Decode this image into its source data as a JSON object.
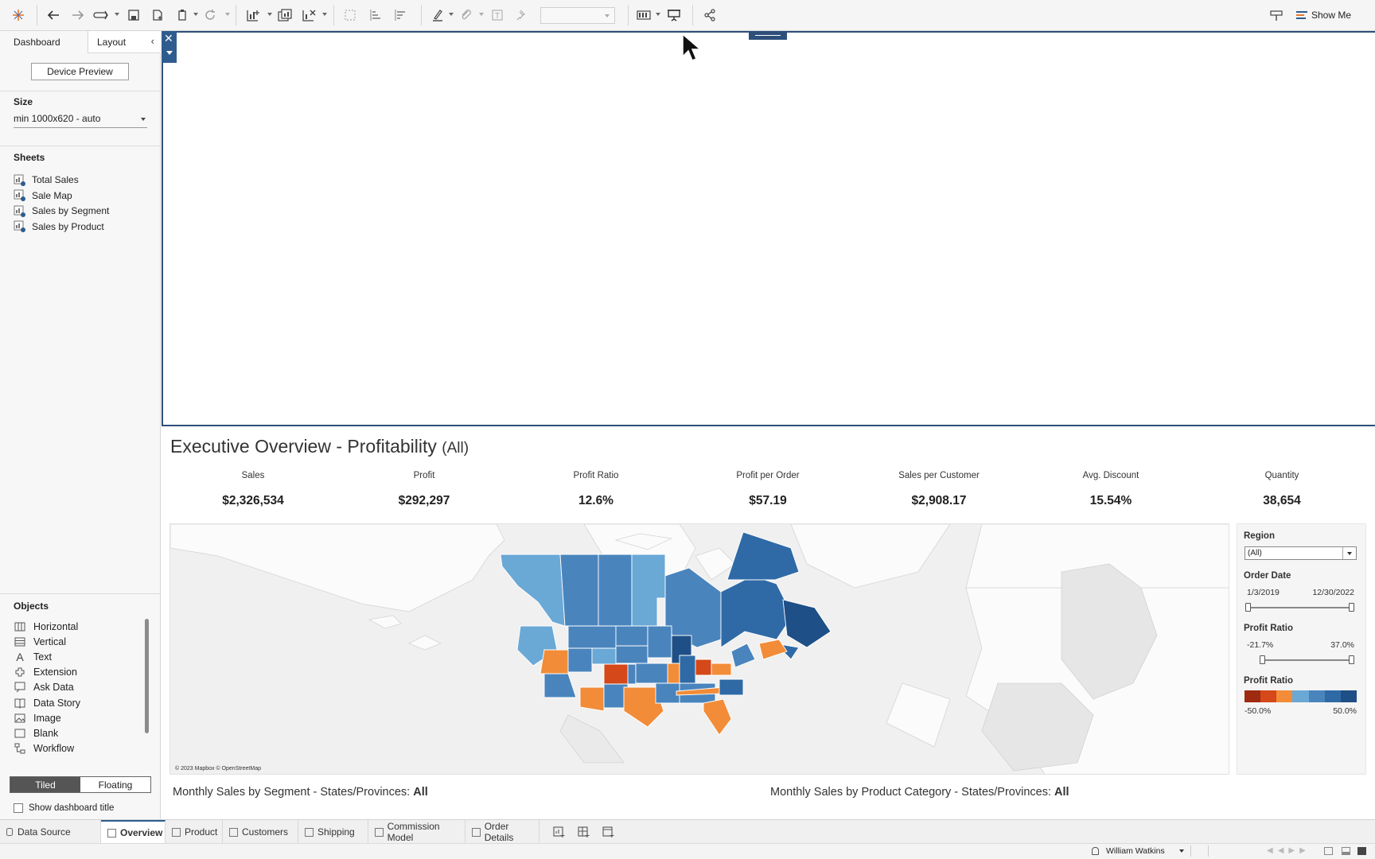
{
  "toolbar": {
    "show_me_label": "Show Me"
  },
  "left_panel": {
    "tabs": [
      "Dashboard",
      "Layout"
    ],
    "device_preview_label": "Device Preview",
    "size_title": "Size",
    "size_value": "min 1000x620 - auto",
    "sheets_title": "Sheets",
    "sheets": [
      "Total Sales",
      "Sale Map",
      "Sales by Segment",
      "Sales by Product"
    ],
    "objects_title": "Objects",
    "objects": [
      {
        "label": "Horizontal",
        "icon": "horizontal-icon"
      },
      {
        "label": "Vertical",
        "icon": "vertical-icon"
      },
      {
        "label": "Text",
        "icon": "text-icon"
      },
      {
        "label": "Extension",
        "icon": "extension-icon"
      },
      {
        "label": "Ask Data",
        "icon": "ask-data-icon"
      },
      {
        "label": "Data Story",
        "icon": "data-story-icon"
      },
      {
        "label": "Image",
        "icon": "image-icon"
      },
      {
        "label": "Blank",
        "icon": "blank-icon"
      },
      {
        "label": "Workflow",
        "icon": "workflow-icon"
      }
    ],
    "tiled_label": "Tiled",
    "floating_label": "Floating",
    "show_title_label": "Show dashboard title"
  },
  "dashboard": {
    "title": "Executive Overview - Profitability",
    "title_suffix": "(All)",
    "kpis": [
      {
        "label": "Sales",
        "value": "$2,326,534"
      },
      {
        "label": "Profit",
        "value": "$292,297"
      },
      {
        "label": "Profit Ratio",
        "value": "12.6%"
      },
      {
        "label": "Profit per Order",
        "value": "$57.19"
      },
      {
        "label": "Sales per Customer",
        "value": "$2,908.17"
      },
      {
        "label": "Avg. Discount",
        "value": "15.54%"
      },
      {
        "label": "Quantity",
        "value": "38,654"
      }
    ],
    "map_credit": "© 2023 Mapbox © OpenStreetMap",
    "filters": {
      "region_label": "Region",
      "region_value": "(All)",
      "order_date_label": "Order Date",
      "order_date_start": "1/3/2019",
      "order_date_end": "12/30/2022",
      "profit_ratio_label": "Profit Ratio",
      "profit_ratio_min": "-21.7%",
      "profit_ratio_max": "37.0%",
      "legend_label": "Profit Ratio",
      "legend_min": "-50.0%",
      "legend_max": "50.0%",
      "legend_colors": [
        "#9e2a0f",
        "#d4481a",
        "#f28c38",
        "#6aa8d6",
        "#4a84bd",
        "#2f6aa6",
        "#1e4f87"
      ]
    },
    "bottom_left_title": "Monthly Sales by Segment - States/Provinces:",
    "bottom_left_value": "All",
    "bottom_right_title": "Monthly Sales by Product Category - States/Provinces:",
    "bottom_right_value": "All"
  },
  "tabs": {
    "data_source": "Data Source",
    "sheets": [
      "Overview",
      "Product",
      "Customers",
      "Shipping",
      "Commission Model",
      "Order Details"
    ]
  },
  "status": {
    "user": "William Watkins"
  },
  "colors": {
    "accent": "#2e5c8e",
    "profit_positive_dark": "#2f6aa6",
    "profit_positive_light": "#6aa8d6",
    "profit_negative": "#f28c38"
  }
}
